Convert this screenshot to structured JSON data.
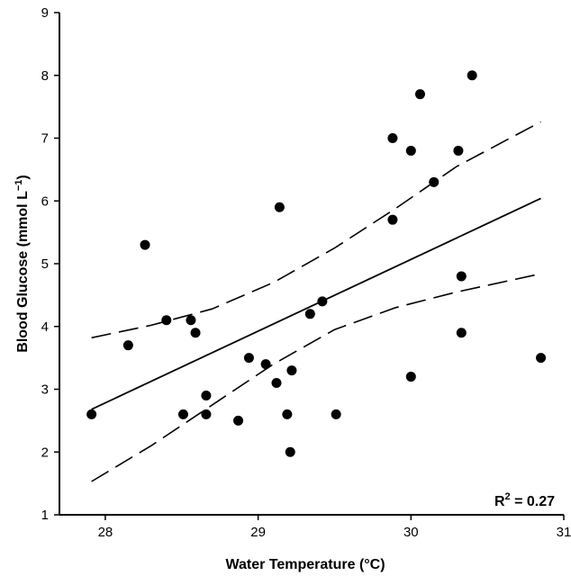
{
  "chart_data": {
    "type": "scatter",
    "title": "",
    "xlabel": "Water Temperature (°C)",
    "ylabel": "Blood Glucose (mmol L",
    "ylabel_sup": "−1",
    "ylabel_close": ")",
    "xlim": [
      27.7,
      31.0
    ],
    "ylim": [
      1,
      9
    ],
    "x_ticks": [
      28,
      29,
      30,
      31
    ],
    "y_ticks": [
      1,
      2,
      3,
      4,
      5,
      6,
      7,
      8,
      9
    ],
    "grid": false,
    "points": [
      {
        "x": 27.91,
        "y": 2.6
      },
      {
        "x": 28.15,
        "y": 3.7
      },
      {
        "x": 28.26,
        "y": 5.3
      },
      {
        "x": 28.4,
        "y": 4.1
      },
      {
        "x": 28.51,
        "y": 2.6
      },
      {
        "x": 28.56,
        "y": 4.1
      },
      {
        "x": 28.59,
        "y": 3.9
      },
      {
        "x": 28.66,
        "y": 2.9
      },
      {
        "x": 28.66,
        "y": 2.6
      },
      {
        "x": 28.87,
        "y": 2.5
      },
      {
        "x": 28.94,
        "y": 3.5
      },
      {
        "x": 29.05,
        "y": 3.4
      },
      {
        "x": 29.12,
        "y": 3.1
      },
      {
        "x": 29.14,
        "y": 5.9
      },
      {
        "x": 29.19,
        "y": 2.6
      },
      {
        "x": 29.21,
        "y": 2.0
      },
      {
        "x": 29.22,
        "y": 3.3
      },
      {
        "x": 29.34,
        "y": 4.2
      },
      {
        "x": 29.42,
        "y": 4.4
      },
      {
        "x": 29.51,
        "y": 2.6
      },
      {
        "x": 29.88,
        "y": 7.0
      },
      {
        "x": 29.88,
        "y": 5.7
      },
      {
        "x": 30.0,
        "y": 6.8
      },
      {
        "x": 30.0,
        "y": 3.2
      },
      {
        "x": 30.06,
        "y": 7.7
      },
      {
        "x": 30.15,
        "y": 6.3
      },
      {
        "x": 30.31,
        "y": 6.8
      },
      {
        "x": 30.33,
        "y": 4.8
      },
      {
        "x": 30.33,
        "y": 3.9
      },
      {
        "x": 30.4,
        "y": 8.0
      },
      {
        "x": 30.85,
        "y": 3.5
      }
    ],
    "regression_line": [
      {
        "x": 27.91,
        "y": 2.68
      },
      {
        "x": 30.85,
        "y": 6.04
      }
    ],
    "confidence_upper": [
      {
        "x": 27.91,
        "y": 3.82
      },
      {
        "x": 28.3,
        "y": 4.02
      },
      {
        "x": 28.7,
        "y": 4.28
      },
      {
        "x": 29.1,
        "y": 4.7
      },
      {
        "x": 29.5,
        "y": 5.25
      },
      {
        "x": 29.9,
        "y": 5.88
      },
      {
        "x": 30.3,
        "y": 6.55
      },
      {
        "x": 30.85,
        "y": 7.26
      }
    ],
    "confidence_lower": [
      {
        "x": 27.91,
        "y": 1.53
      },
      {
        "x": 28.3,
        "y": 2.1
      },
      {
        "x": 28.7,
        "y": 2.75
      },
      {
        "x": 29.1,
        "y": 3.4
      },
      {
        "x": 29.5,
        "y": 3.95
      },
      {
        "x": 29.9,
        "y": 4.3
      },
      {
        "x": 30.3,
        "y": 4.55
      },
      {
        "x": 30.85,
        "y": 4.84
      }
    ],
    "annotation": {
      "prefix": "R",
      "sup": "2",
      "suffix": " = 0.27"
    }
  }
}
